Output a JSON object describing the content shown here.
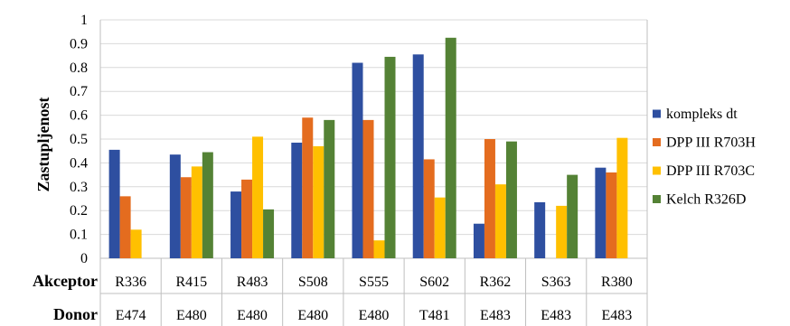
{
  "chart_data": {
    "type": "bar",
    "title": "",
    "xlabel": "",
    "ylabel": "Zastupljenost",
    "ylim": [
      0,
      1
    ],
    "yticks": [
      "0",
      "0.1",
      "0.2",
      "0.3",
      "0.4",
      "0.5",
      "0.6",
      "0.7",
      "0.8",
      "0.9",
      "1"
    ],
    "grid": true,
    "legend_position": "right",
    "row_labels": {
      "acceptor": "Akceptor",
      "donor": "Donor"
    },
    "acceptors": [
      "R336",
      "R415",
      "R483",
      "S508",
      "S555",
      "S602",
      "R362",
      "S363",
      "R380"
    ],
    "donors": [
      "E474",
      "E480",
      "E480",
      "E480",
      "E480",
      "T481",
      "E483",
      "E483",
      "E483"
    ],
    "series": [
      {
        "name": "kompleks dt",
        "color": "#2E4FA0",
        "values": [
          0.455,
          0.435,
          0.28,
          0.485,
          0.82,
          0.855,
          0.145,
          0.235,
          0.38
        ]
      },
      {
        "name": "DPP III R703H",
        "color": "#E46C1F",
        "values": [
          0.26,
          0.34,
          0.33,
          0.59,
          0.58,
          0.415,
          0.5,
          null,
          0.36
        ]
      },
      {
        "name": "DPP III R703C",
        "color": "#FFC000",
        "values": [
          0.12,
          0.385,
          0.51,
          0.47,
          0.075,
          0.255,
          0.31,
          0.22,
          0.505
        ]
      },
      {
        "name": "Kelch R326D",
        "color": "#548235",
        "values": [
          null,
          0.445,
          0.205,
          0.58,
          0.845,
          0.925,
          0.49,
          0.35,
          null
        ]
      }
    ]
  }
}
